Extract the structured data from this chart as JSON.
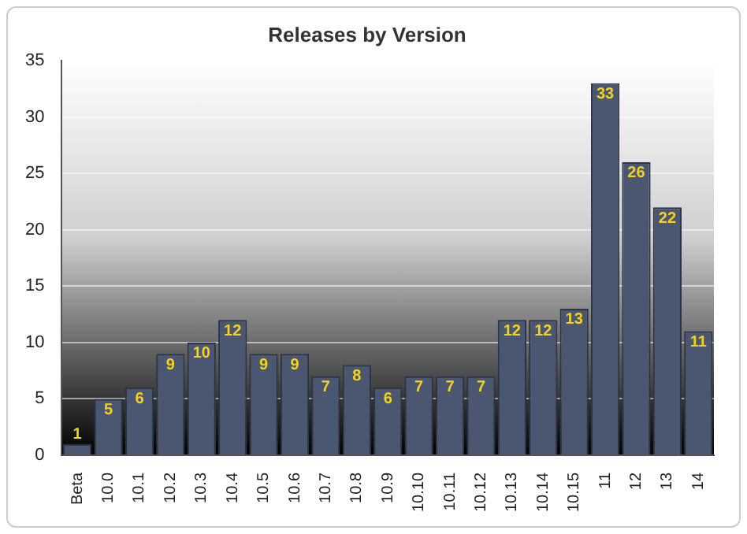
{
  "chart_data": {
    "type": "bar",
    "title": "Releases by Version",
    "categories": [
      "Beta",
      "10.0",
      "10.1",
      "10.2",
      "10.3",
      "10.4",
      "10.5",
      "10.6",
      "10.7",
      "10.8",
      "10.9",
      "10.10",
      "10.11",
      "10.12",
      "10.13",
      "10.14",
      "10.15",
      "11",
      "12",
      "13",
      "14"
    ],
    "values": [
      1,
      5,
      6,
      9,
      10,
      12,
      9,
      9,
      7,
      8,
      6,
      7,
      7,
      7,
      12,
      12,
      13,
      33,
      26,
      22,
      11
    ],
    "color": "#4b5771",
    "ylim": [
      0,
      35
    ],
    "yticks": [
      0,
      5,
      10,
      15,
      20,
      25,
      30,
      35
    ],
    "grid": "y",
    "legend": false,
    "data_labels": true
  }
}
